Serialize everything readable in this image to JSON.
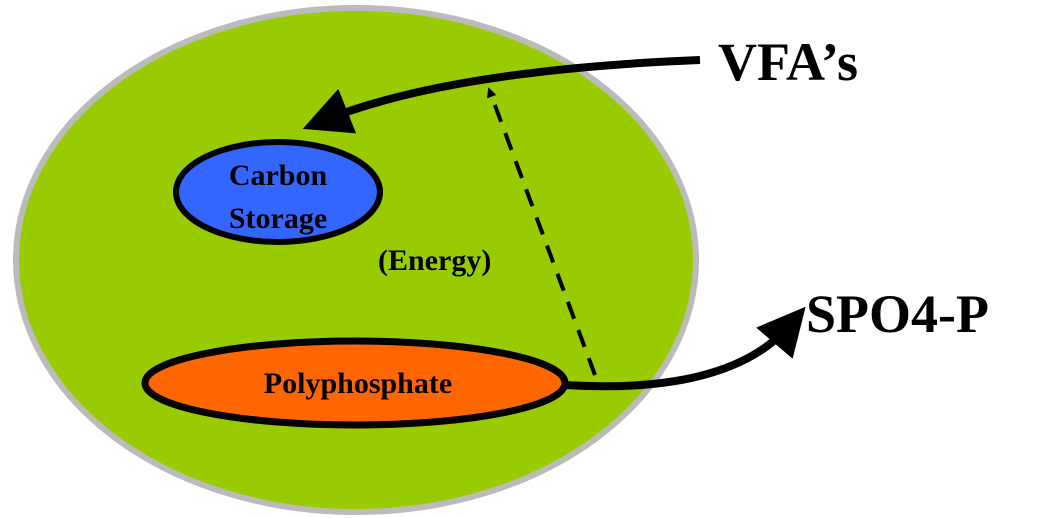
{
  "nodes": [
    {
      "label": "Carbon"
    },
    {
      "label": "Storage"
    },
    {
      "label": "Polyphosphate"
    },
    {
      "label": "VFA’s"
    },
    {
      "label": "SPO4-P"
    },
    {
      "label": "(Energy)"
    }
  ]
}
